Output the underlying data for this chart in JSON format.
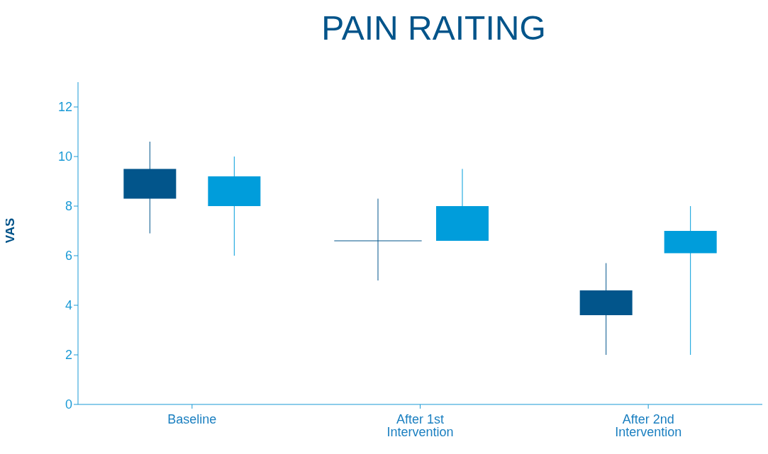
{
  "chart_data": {
    "type": "candlestick",
    "title": "PAIN RAITING",
    "ylabel": "VAS",
    "categories": [
      "Baseline",
      "After 1st Intervention",
      "After 2nd Intervention"
    ],
    "series": [
      {
        "color": "#02558b",
        "ohlc": [
          [
            8.3,
            10.6,
            6.9,
            9.5
          ],
          [
            6.6,
            8.3,
            5.0,
            6.6
          ],
          [
            3.6,
            5.7,
            2.0,
            4.6
          ]
        ]
      },
      {
        "color": "#009ddb",
        "ohlc": [
          [
            8.0,
            10.0,
            6.0,
            9.2
          ],
          [
            6.6,
            9.5,
            6.6,
            8.0
          ],
          [
            6.1,
            8.0,
            2.0,
            7.0
          ]
        ]
      }
    ],
    "ylim": [
      0,
      13
    ],
    "yticks": [
      0,
      2,
      4,
      6,
      8,
      10,
      12
    ]
  }
}
